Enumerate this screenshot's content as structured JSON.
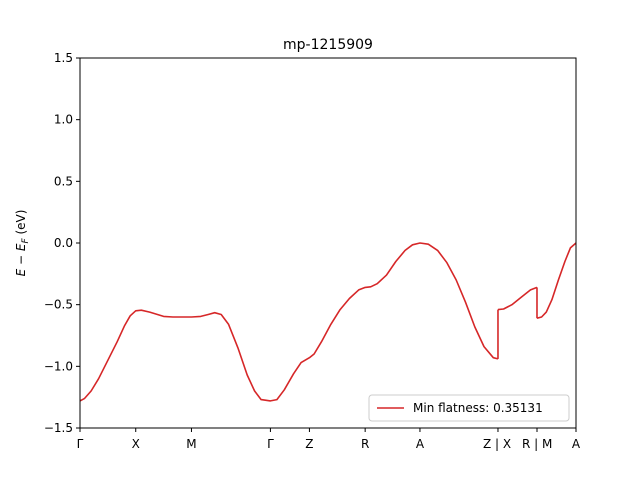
{
  "chart_data": {
    "type": "line",
    "title": "mp-1215909",
    "ylabel_prefix": "E − E",
    "ylabel_sub": "F",
    "ylabel_suffix": " (eV)",
    "ylim": [
      -1.5,
      1.5
    ],
    "yticks": [
      -1.5,
      -1.0,
      -0.5,
      0.0,
      0.5,
      1.0,
      1.5
    ],
    "ytick_labels": [
      "−1.5",
      "−1.0",
      "−0.5",
      "0.0",
      "0.5",
      "1.0",
      "1.5"
    ],
    "xlim": [
      0,
      5.34
    ],
    "xticks": [
      {
        "label": "Γ",
        "x": 0.0
      },
      {
        "label": "X",
        "x": 0.6
      },
      {
        "label": "M",
        "x": 1.2
      },
      {
        "label": "Γ",
        "x": 2.05
      },
      {
        "label": "Z",
        "x": 2.47
      },
      {
        "label": "R",
        "x": 3.07
      },
      {
        "label": "A",
        "x": 3.66
      },
      {
        "label": "Z | X",
        "x": 4.5
      },
      {
        "label": "R | M",
        "x": 4.92
      },
      {
        "label": "A",
        "x": 5.34
      }
    ],
    "grid": false,
    "legend": {
      "position": "lower right",
      "entries": [
        "Min flatness: 0.35131"
      ]
    },
    "series": [
      {
        "name": "Min flatness: 0.35131",
        "color": "#d62728",
        "segments": [
          [
            [
              0.0,
              -1.28
            ],
            [
              0.05,
              -1.26
            ],
            [
              0.12,
              -1.2
            ],
            [
              0.2,
              -1.1
            ],
            [
              0.3,
              -0.95
            ],
            [
              0.4,
              -0.8
            ],
            [
              0.48,
              -0.67
            ],
            [
              0.54,
              -0.59
            ],
            [
              0.6,
              -0.55
            ],
            [
              0.66,
              -0.545
            ],
            [
              0.75,
              -0.56
            ],
            [
              0.9,
              -0.595
            ],
            [
              1.0,
              -0.6
            ],
            [
              1.1,
              -0.6
            ],
            [
              1.2,
              -0.6
            ],
            [
              1.3,
              -0.595
            ],
            [
              1.38,
              -0.58
            ],
            [
              1.45,
              -0.565
            ],
            [
              1.52,
              -0.58
            ],
            [
              1.6,
              -0.66
            ],
            [
              1.7,
              -0.85
            ],
            [
              1.8,
              -1.07
            ],
            [
              1.88,
              -1.2
            ],
            [
              1.95,
              -1.27
            ],
            [
              2.05,
              -1.28
            ],
            [
              2.12,
              -1.27
            ],
            [
              2.2,
              -1.19
            ],
            [
              2.3,
              -1.06
            ],
            [
              2.38,
              -0.97
            ],
            [
              2.47,
              -0.93
            ],
            [
              2.52,
              -0.9
            ],
            [
              2.6,
              -0.8
            ],
            [
              2.7,
              -0.66
            ],
            [
              2.8,
              -0.54
            ],
            [
              2.9,
              -0.45
            ],
            [
              3.0,
              -0.38
            ],
            [
              3.07,
              -0.36
            ],
            [
              3.13,
              -0.355
            ],
            [
              3.2,
              -0.33
            ],
            [
              3.3,
              -0.26
            ],
            [
              3.4,
              -0.15
            ],
            [
              3.5,
              -0.06
            ],
            [
              3.58,
              -0.015
            ],
            [
              3.66,
              0.0
            ],
            [
              3.75,
              -0.01
            ],
            [
              3.85,
              -0.06
            ],
            [
              3.95,
              -0.16
            ],
            [
              4.05,
              -0.3
            ],
            [
              4.15,
              -0.48
            ],
            [
              4.25,
              -0.68
            ],
            [
              4.35,
              -0.84
            ],
            [
              4.45,
              -0.93
            ],
            [
              4.5,
              -0.94
            ]
          ],
          [
            [
              4.5,
              -0.54
            ],
            [
              4.56,
              -0.535
            ],
            [
              4.65,
              -0.5
            ],
            [
              4.75,
              -0.44
            ],
            [
              4.85,
              -0.38
            ],
            [
              4.92,
              -0.36
            ]
          ],
          [
            [
              4.92,
              -0.61
            ],
            [
              4.97,
              -0.6
            ],
            [
              5.02,
              -0.56
            ],
            [
              5.08,
              -0.46
            ],
            [
              5.15,
              -0.3
            ],
            [
              5.22,
              -0.15
            ],
            [
              5.28,
              -0.04
            ],
            [
              5.34,
              0.0
            ]
          ]
        ]
      }
    ]
  }
}
